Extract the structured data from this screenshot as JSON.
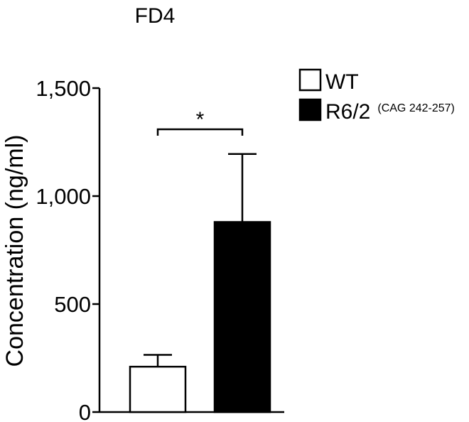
{
  "chart_data": {
    "type": "bar",
    "title": "FD4",
    "ylabel": "Concentration (ng/ml)",
    "ylim": [
      0,
      1500
    ],
    "yticks": [
      0,
      500,
      1000,
      1500
    ],
    "ytick_labels": [
      "0",
      "500",
      "1,000",
      "1,500"
    ],
    "categories": [
      "WT",
      "R6/2"
    ],
    "values": [
      210,
      880
    ],
    "errors": [
      55,
      315
    ],
    "colors": [
      "#ffffff",
      "#000000"
    ],
    "legend": {
      "placement": "top-right",
      "entries": [
        {
          "label": "WT",
          "sublabel": "",
          "color": "#ffffff"
        },
        {
          "label": "R6/2",
          "sublabel": "(CAG 242-257)",
          "color": "#000000"
        }
      ]
    },
    "annotations": [
      {
        "text": "*",
        "between": [
          0,
          1
        ]
      }
    ],
    "grid": false
  }
}
